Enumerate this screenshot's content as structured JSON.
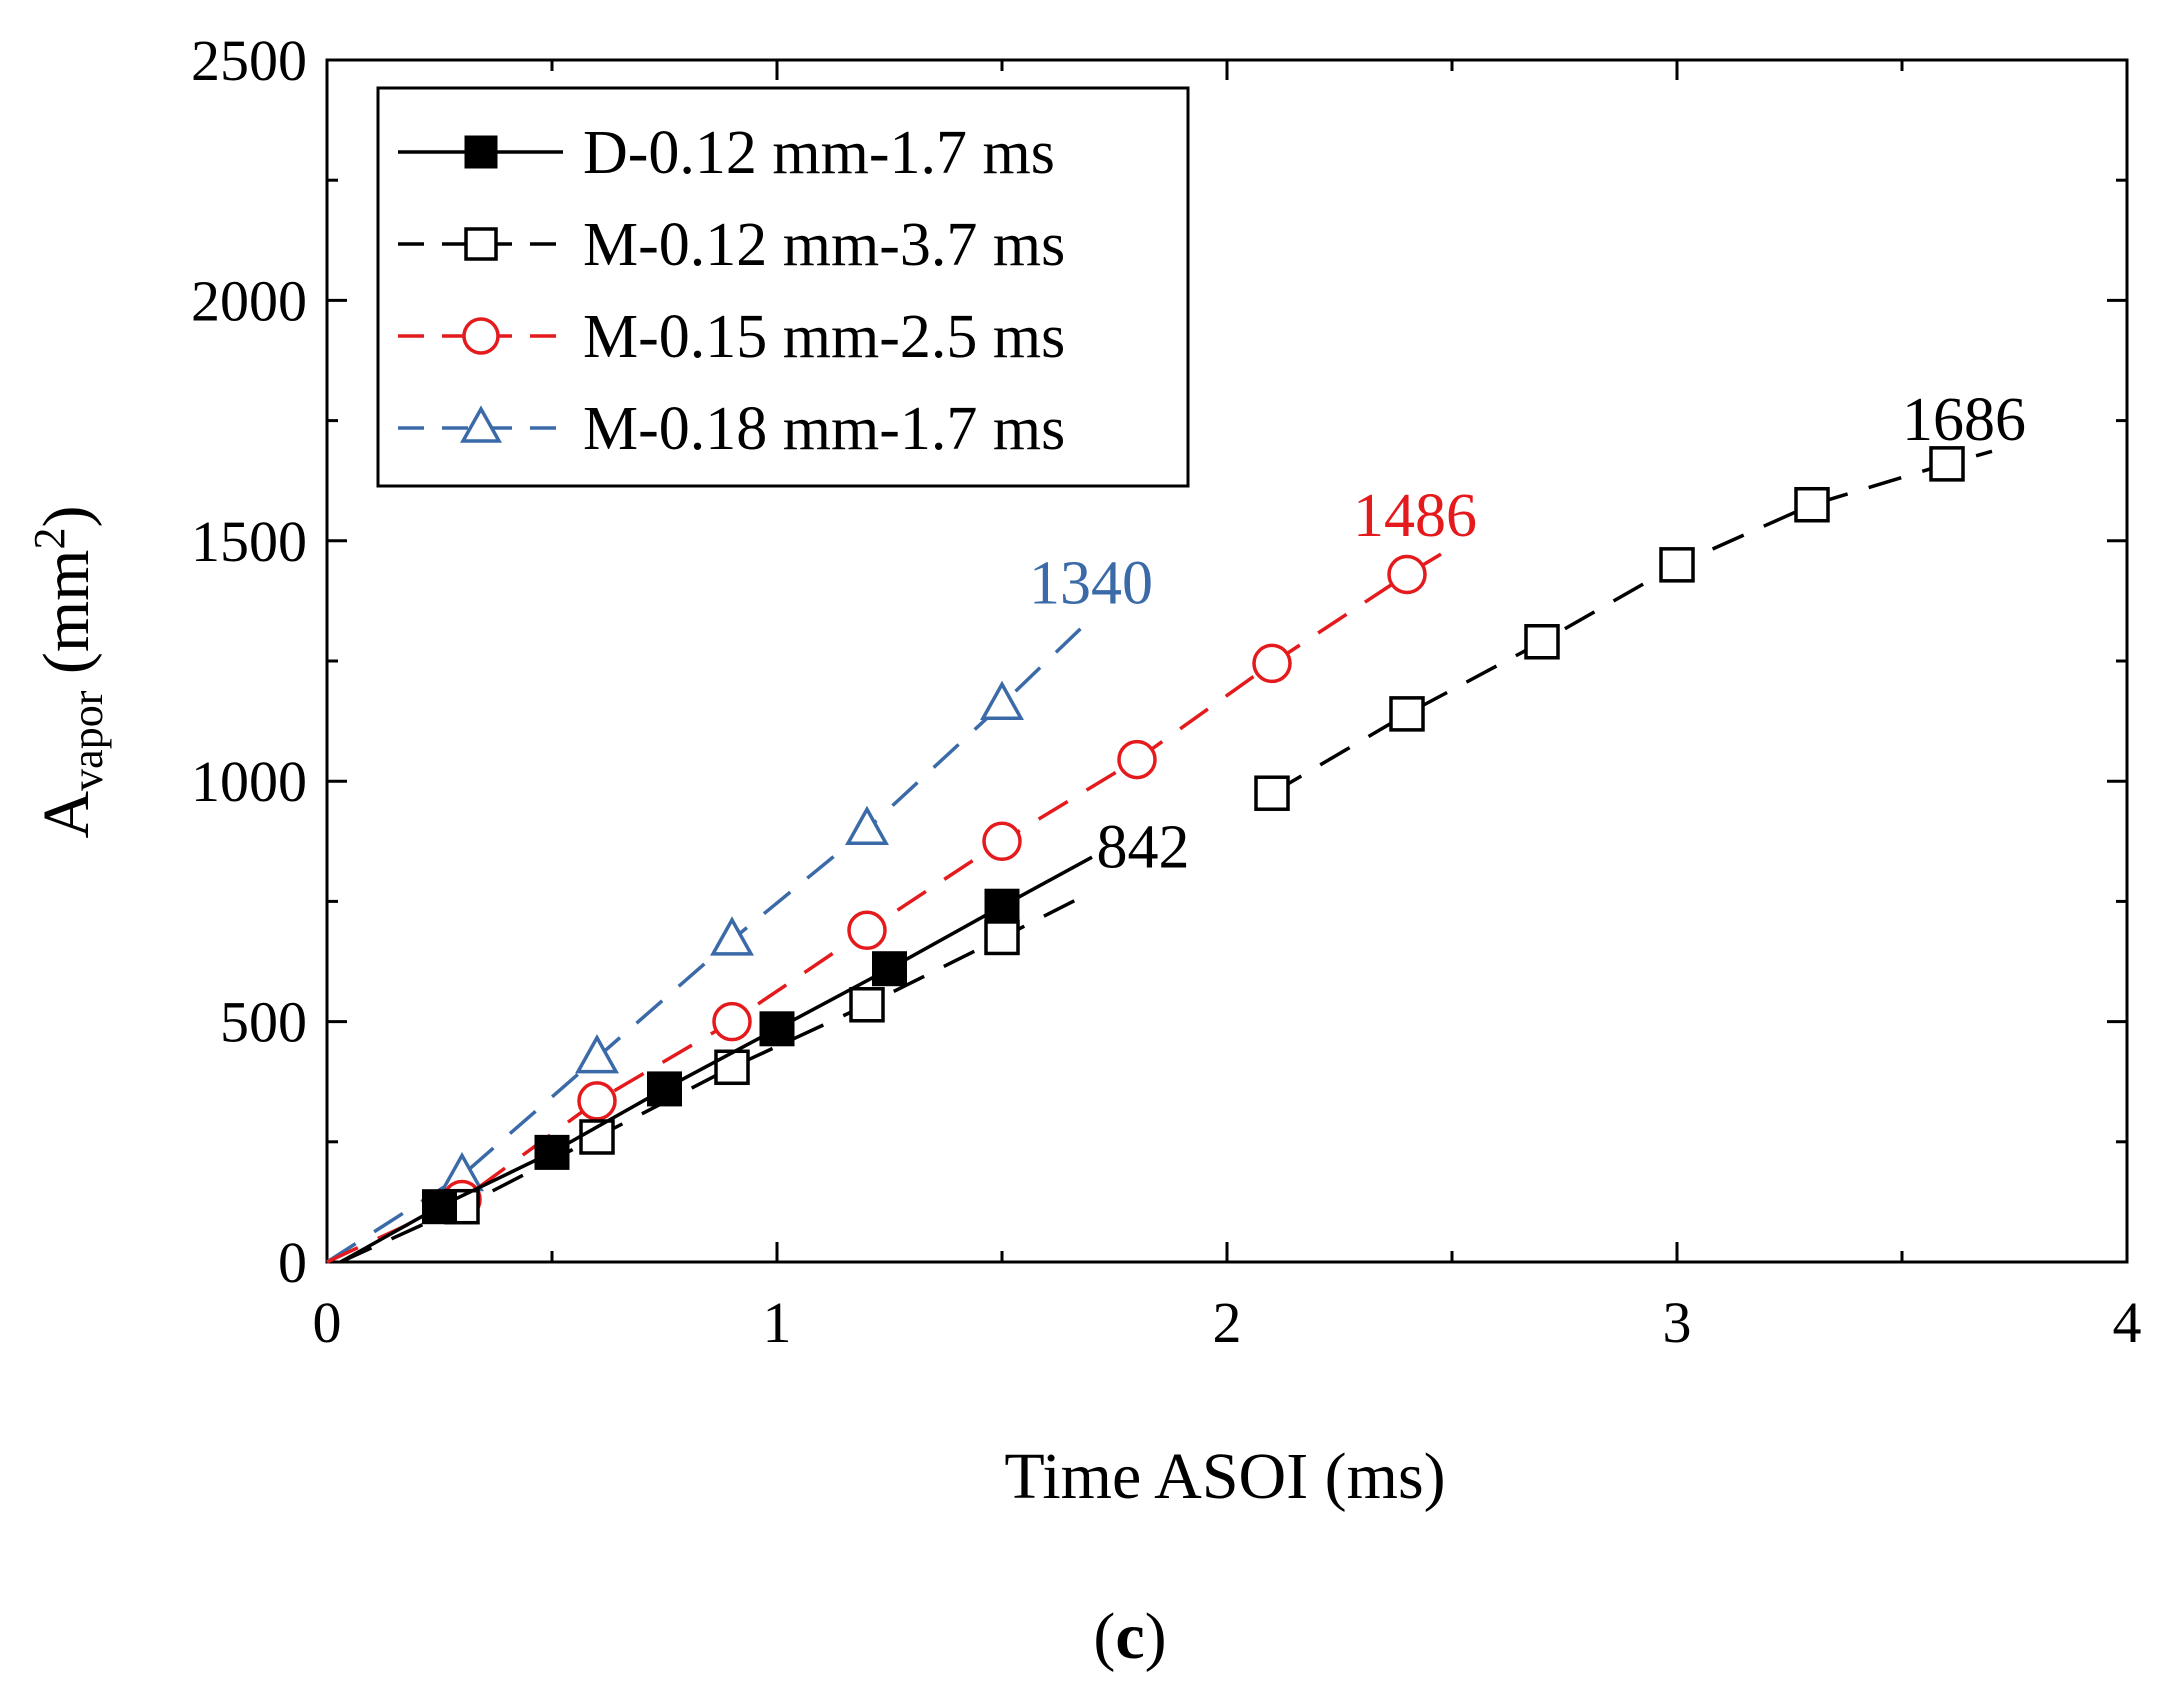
{
  "chart_data": {
    "type": "line",
    "xlabel": "Time ASOI (ms)",
    "ylabel_main": "A",
    "ylabel_sub": "vapor",
    "ylabel_unit_open": " (mm",
    "ylabel_unit_sup": "2",
    "ylabel_unit_close": ")",
    "xlim": [
      0,
      4
    ],
    "ylim": [
      0,
      2500
    ],
    "xticks": [
      0,
      1,
      2,
      3,
      4
    ],
    "yticks": [
      0,
      500,
      1000,
      1500,
      2000,
      2500
    ],
    "xtick_labels": [
      "0",
      "1",
      "2",
      "3",
      "4"
    ],
    "ytick_labels": [
      "0",
      "500",
      "1000",
      "1500",
      "2000",
      "2500"
    ],
    "grid": false,
    "legend_position": "top-left",
    "caption_open": "(",
    "caption_letter": "c",
    "caption_close": ")",
    "series": [
      {
        "name": "D-0.12 mm-1.7 ms",
        "color": "#000000",
        "dash": "solid",
        "marker": "square-filled",
        "line_x": [
          0.03,
          0.25,
          0.5,
          0.75,
          1.0,
          1.25,
          1.5,
          1.7
        ],
        "line_y": [
          0,
          115,
          228,
          360,
          485,
          610,
          740,
          842
        ],
        "marker_x": [
          0.25,
          0.5,
          0.75,
          1.0,
          1.25,
          1.5
        ],
        "marker_y": [
          115,
          228,
          360,
          485,
          610,
          740
        ]
      },
      {
        "name": "M-0.12 mm-3.7 ms",
        "color": "#000000",
        "dash": "dashed",
        "marker": "square-open",
        "line_x": [
          0.03,
          0.3,
          0.6,
          0.9,
          1.2,
          1.5,
          1.7
        ],
        "line_y": [
          0,
          115,
          260,
          405,
          535,
          675,
          770
        ],
        "line2_x": [
          2.1,
          2.4,
          2.7,
          3.0,
          3.3,
          3.6,
          3.7
        ],
        "line2_y": [
          975,
          1140,
          1290,
          1450,
          1575,
          1660,
          1686
        ],
        "marker_x": [
          0.3,
          0.6,
          0.9,
          1.2,
          1.5,
          2.1,
          2.4,
          2.7,
          3.0,
          3.3,
          3.6
        ],
        "marker_y": [
          115,
          260,
          405,
          535,
          675,
          975,
          1140,
          1290,
          1450,
          1575,
          1660
        ]
      },
      {
        "name": "M-0.15 mm-2.5 ms",
        "color": "#e41a1c",
        "dash": "dashed",
        "marker": "circle-open",
        "line_x": [
          0.0,
          0.3,
          0.6,
          0.9,
          1.2,
          1.5,
          1.8,
          2.1,
          2.4,
          2.5
        ],
        "line_y": [
          0,
          130,
          335,
          500,
          690,
          875,
          1045,
          1245,
          1430,
          1486
        ],
        "marker_x": [
          0.3,
          0.6,
          0.9,
          1.2,
          1.5,
          1.8,
          2.1,
          2.4
        ],
        "marker_y": [
          130,
          335,
          500,
          690,
          875,
          1045,
          1245,
          1430
        ]
      },
      {
        "name": "M-0.18 mm-1.7 ms",
        "color": "#3b6aa8",
        "dash": "dashed",
        "marker": "triangle-open",
        "line_x": [
          0.0,
          0.3,
          0.6,
          0.9,
          1.2,
          1.5,
          1.7
        ],
        "line_y": [
          0,
          180,
          425,
          670,
          900,
          1160,
          1340
        ],
        "marker_x": [
          0.3,
          0.6,
          0.9,
          1.2,
          1.5
        ],
        "marker_y": [
          180,
          425,
          670,
          900,
          1160
        ]
      }
    ],
    "annotations": [
      {
        "text": "842",
        "x": 1.71,
        "y": 820,
        "color": "#000000"
      },
      {
        "text": "1686",
        "x": 3.5,
        "y": 1710,
        "color": "#000000"
      },
      {
        "text": "1486",
        "x": 2.28,
        "y": 1510,
        "color": "#e41a1c"
      },
      {
        "text": "1340",
        "x": 1.56,
        "y": 1370,
        "color": "#3b6aa8"
      }
    ]
  }
}
